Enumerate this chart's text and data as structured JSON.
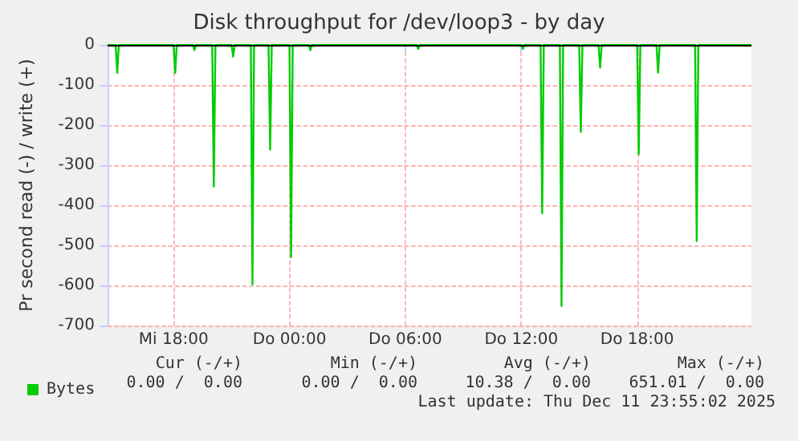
{
  "chart_data": {
    "type": "line",
    "title": "Disk throughput for /dev/loop3 - by day",
    "ylabel": "Pr second read (-) / write (+)",
    "xlim": [
      "2025-12-10T14:35",
      "2025-12-11T23:55"
    ],
    "xticks": [
      {
        "value": "2025-12-10T18:00",
        "label": "Mi 18:00"
      },
      {
        "value": "2025-12-11T00:00",
        "label": "Do 00:00"
      },
      {
        "value": "2025-12-11T06:00",
        "label": "Do 06:00"
      },
      {
        "value": "2025-12-11T12:00",
        "label": "Do 12:00"
      },
      {
        "value": "2025-12-11T18:00",
        "label": "Do 18:00"
      }
    ],
    "ylim": [
      -700,
      0
    ],
    "yticks": [
      0,
      -100,
      -200,
      -300,
      -400,
      -500,
      -600,
      -700
    ],
    "series": [
      {
        "name": "Bytes",
        "color": "#00cc00",
        "x": [
          "2025-12-10T14:35",
          "2025-12-10T15:00",
          "2025-12-10T15:05",
          "2025-12-10T15:10",
          "2025-12-10T18:00",
          "2025-12-10T18:05",
          "2025-12-10T18:10",
          "2025-12-10T19:00",
          "2025-12-10T19:05",
          "2025-12-10T19:10",
          "2025-12-10T20:00",
          "2025-12-10T20:05",
          "2025-12-10T20:10",
          "2025-12-10T21:00",
          "2025-12-10T21:05",
          "2025-12-10T21:10",
          "2025-12-10T22:00",
          "2025-12-10T22:05",
          "2025-12-10T22:10",
          "2025-12-10T22:55",
          "2025-12-10T23:00",
          "2025-12-10T23:05",
          "2025-12-11T00:00",
          "2025-12-11T00:05",
          "2025-12-11T00:10",
          "2025-12-11T01:00",
          "2025-12-11T01:05",
          "2025-12-11T01:10",
          "2025-12-11T06:35",
          "2025-12-11T06:40",
          "2025-12-11T06:45",
          "2025-12-11T12:00",
          "2025-12-11T12:05",
          "2025-12-11T12:10",
          "2025-12-11T13:00",
          "2025-12-11T13:05",
          "2025-12-11T13:10",
          "2025-12-11T14:00",
          "2025-12-11T14:05",
          "2025-12-11T14:10",
          "2025-12-11T15:00",
          "2025-12-11T15:05",
          "2025-12-11T15:10",
          "2025-12-11T16:00",
          "2025-12-11T16:05",
          "2025-12-11T16:10",
          "2025-12-11T18:00",
          "2025-12-11T18:05",
          "2025-12-11T18:10",
          "2025-12-11T19:00",
          "2025-12-11T19:05",
          "2025-12-11T19:10",
          "2025-12-11T21:00",
          "2025-12-11T21:05",
          "2025-12-11T21:10",
          "2025-12-11T23:55"
        ],
        "values": [
          0,
          0,
          -70,
          0,
          0,
          -70,
          0,
          0,
          -13,
          0,
          0,
          -353,
          0,
          0,
          -29,
          0,
          0,
          -597,
          0,
          0,
          -261,
          0,
          0,
          -529,
          0,
          0,
          -13,
          0,
          0,
          -10,
          0,
          0,
          -10,
          0,
          0,
          -420,
          0,
          0,
          -651,
          0,
          0,
          -217,
          0,
          0,
          -57,
          0,
          0,
          -273,
          0,
          0,
          -69,
          0,
          0,
          -489,
          0,
          0
        ]
      }
    ],
    "ref_lines": [
      {
        "axis": "y",
        "value": 0,
        "color": "#000000"
      }
    ],
    "grid": true,
    "legend": "bottom left",
    "marker": "none",
    "line_style": "solid",
    "annotations": [
      "Cur (-/+)",
      "Min (-/+)",
      "Avg (-/+)",
      "Max (-/+)",
      "0.00 /  0.00",
      "0.00 /  0.00",
      "10.38 /  0.00",
      "651.01 /  0.00",
      "Last update: Thu Dec 11 23:55:02 2025"
    ]
  }
}
